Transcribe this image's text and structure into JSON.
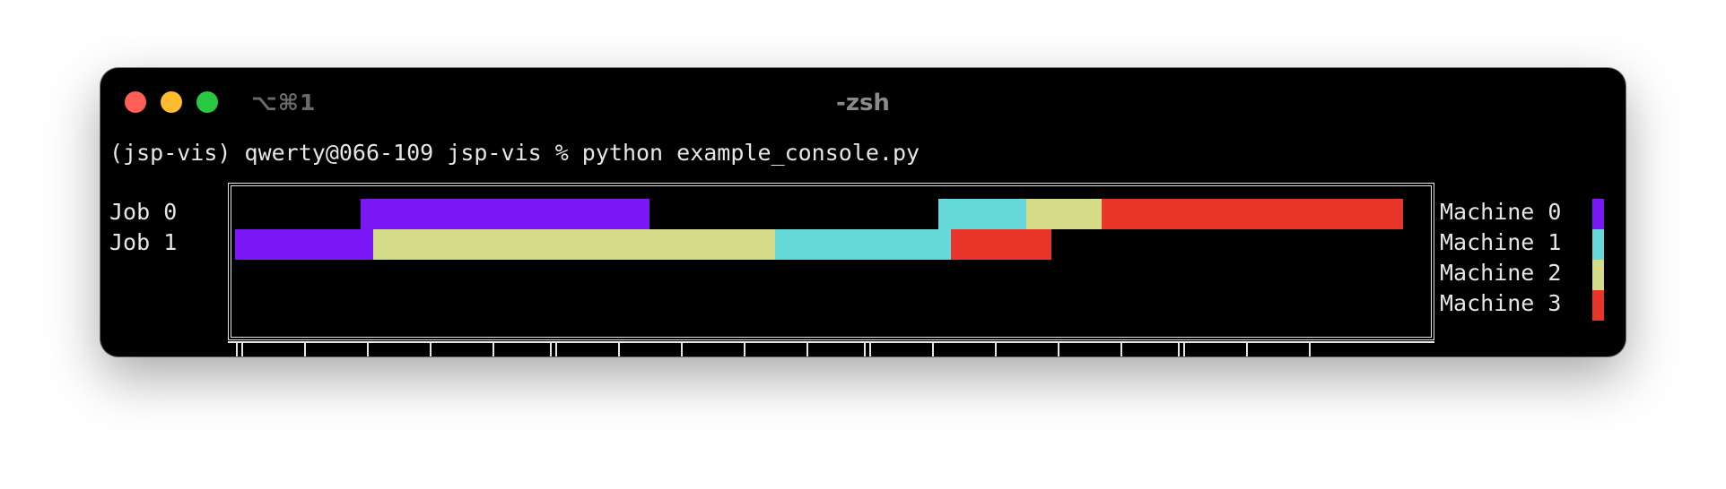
{
  "window": {
    "shortcut": "⌥⌘1",
    "title": "-zsh"
  },
  "terminal": {
    "prompt_line": "(jsp-vis) qwerty@066-109 jsp-vis % python example_console.py"
  },
  "chart_data": {
    "type": "gantt",
    "jobs": [
      "Job 0",
      "Job 1"
    ],
    "machines": [
      {
        "name": "Machine 0",
        "color": "#7a18f5"
      },
      {
        "name": "Machine 1",
        "color": "#66d8da"
      },
      {
        "name": "Machine 2",
        "color": "#d4dc88"
      },
      {
        "name": "Machine 3",
        "color": "#e8352a"
      }
    ],
    "xlim": [
      0,
      93
    ],
    "tasks": [
      {
        "job": 0,
        "machine": 0,
        "start": 10,
        "end": 33
      },
      {
        "job": 0,
        "machine": 1,
        "start": 56,
        "end": 63
      },
      {
        "job": 0,
        "machine": 2,
        "start": 63,
        "end": 69
      },
      {
        "job": 0,
        "machine": 3,
        "start": 69,
        "end": 93
      },
      {
        "job": 1,
        "machine": 0,
        "start": 0,
        "end": 11
      },
      {
        "job": 1,
        "machine": 2,
        "start": 11,
        "end": 43
      },
      {
        "job": 1,
        "machine": 1,
        "start": 43,
        "end": 57
      },
      {
        "job": 1,
        "machine": 3,
        "start": 57,
        "end": 65
      }
    ]
  }
}
